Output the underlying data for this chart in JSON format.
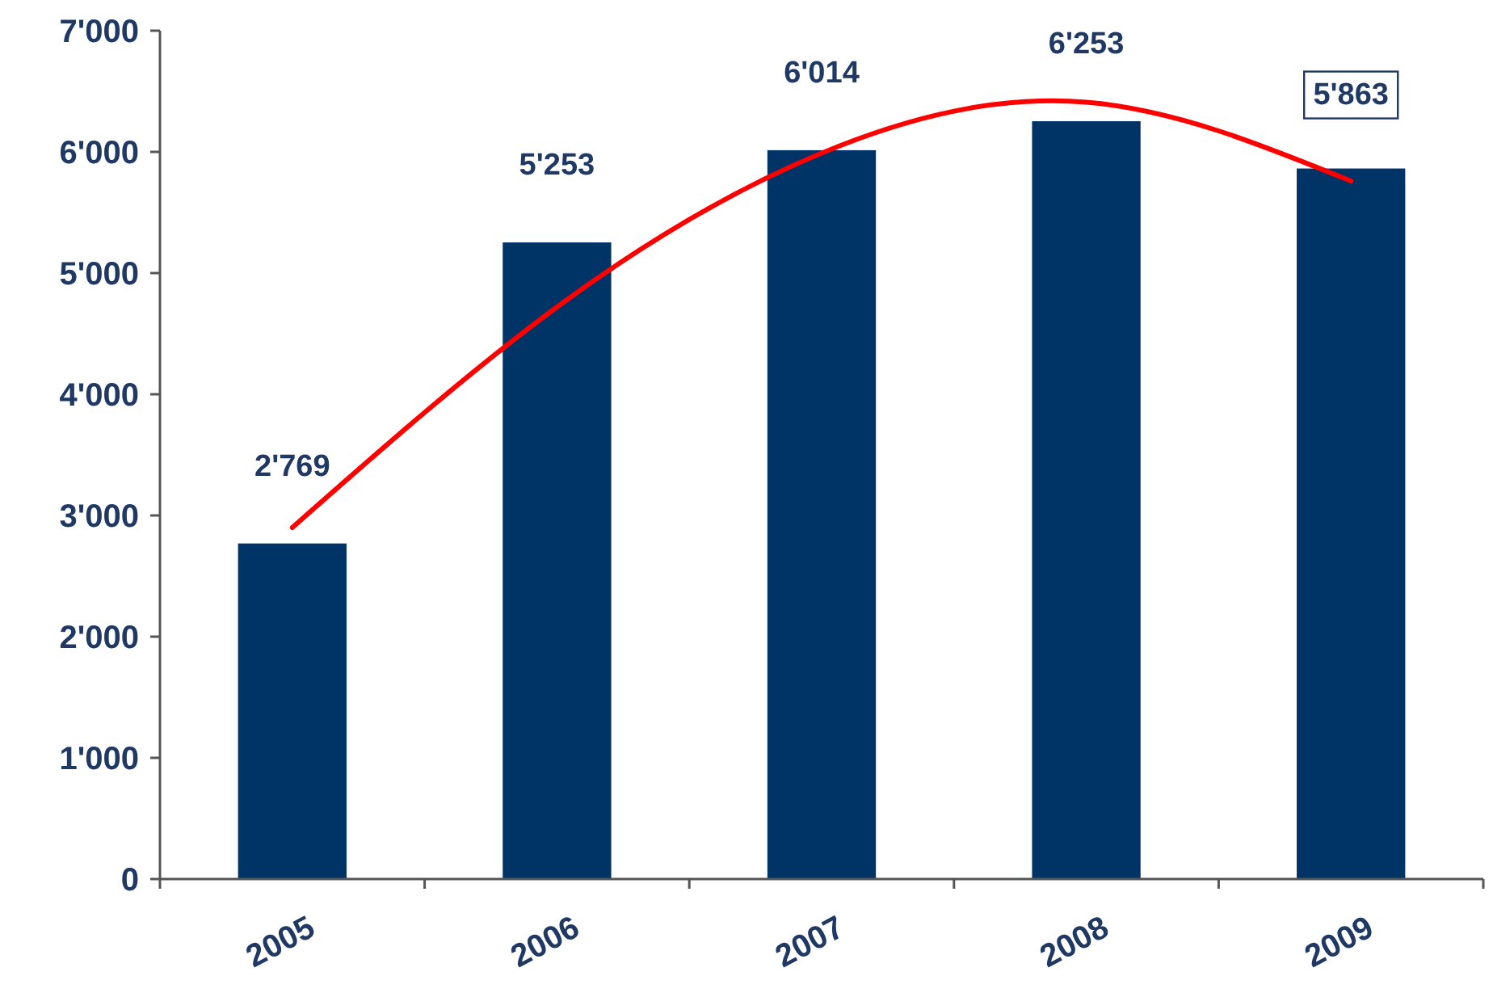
{
  "chart_data": {
    "type": "bar",
    "categories": [
      "2005",
      "2006",
      "2007",
      "2008",
      "2009"
    ],
    "series": [
      {
        "color": "#003366",
        "values": [
          2769,
          5253,
          6014,
          6253,
          5863
        ],
        "value_labels": [
          "2'769",
          "5'253",
          "6'014",
          "6'253",
          "5'863"
        ]
      },
      {
        "type": "line",
        "color": "#ff0000",
        "values": [
          2900,
          4720,
          5990,
          6410,
          5760
        ]
      }
    ],
    "ylim": [
      0,
      7000
    ],
    "yticks": [
      0,
      {
        "value": 1000,
        "label": "1'000"
      },
      {
        "value": 2000,
        "label": "2'000"
      },
      {
        "value": 3000,
        "label": "3'000"
      },
      {
        "value": 4000,
        "label": "4'000"
      },
      {
        "value": 5000,
        "label": "5'000"
      },
      {
        "value": 6000,
        "label": "6'000"
      },
      {
        "value": 7000,
        "label": "7'000"
      }
    ],
    "grid": false,
    "marker": "none",
    "line_style": "solid"
  }
}
